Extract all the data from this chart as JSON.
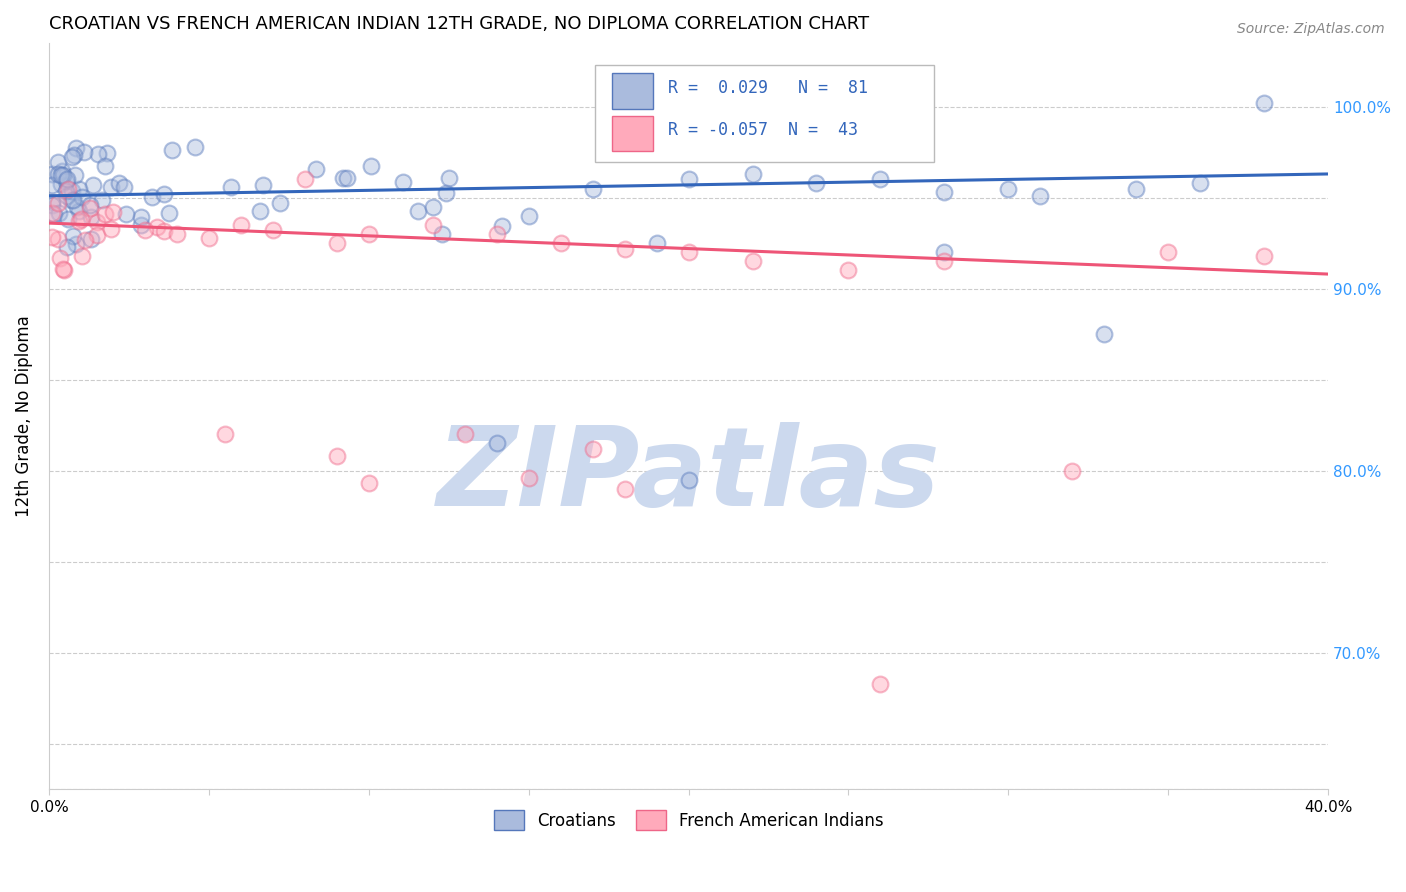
{
  "title": "CROATIAN VS FRENCH AMERICAN INDIAN 12TH GRADE, NO DIPLOMA CORRELATION CHART",
  "source": "Source: ZipAtlas.com",
  "ylabel": "12th Grade, No Diploma",
  "x_min": 0.0,
  "x_max": 0.4,
  "y_min": 0.625,
  "y_max": 1.035,
  "grid_color": "#cccccc",
  "background_color": "#ffffff",
  "watermark_text": "ZIPatlas",
  "watermark_color": "#ccd9ee",
  "blue_line_color": "#3366bb",
  "pink_line_color": "#ee5577",
  "legend_R_blue": "0.029",
  "legend_N_blue": "81",
  "legend_R_pink": "-0.057",
  "legend_N_pink": "43",
  "legend_label_blue": "Croatians",
  "legend_label_pink": "French American Indians",
  "blue_trend_x": [
    0.0,
    0.4
  ],
  "blue_trend_y": [
    0.951,
    0.963
  ],
  "pink_trend_x": [
    0.0,
    0.4
  ],
  "pink_trend_y": [
    0.936,
    0.908
  ],
  "marker_size": 130,
  "marker_alpha": 0.45,
  "marker_linewidth": 1.5
}
